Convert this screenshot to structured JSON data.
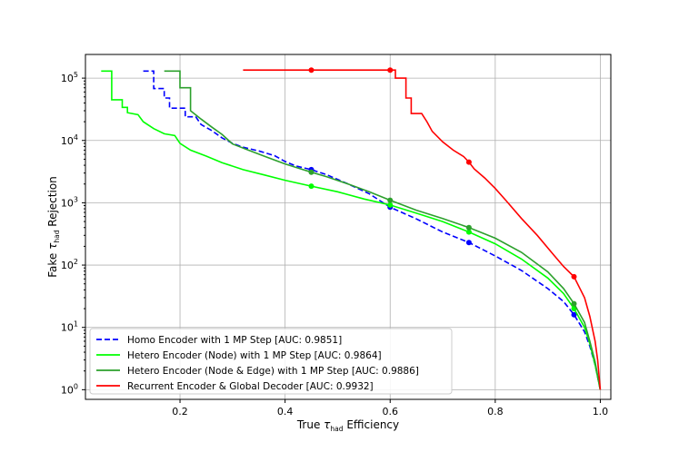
{
  "chart_data": {
    "type": "line",
    "xlabel": "True τ_had Efficiency",
    "ylabel": "Fake τ_had Rejection",
    "xlabel_parts": [
      "True ",
      "τ",
      "had",
      " Efficiency"
    ],
    "ylabel_parts": [
      "Fake ",
      "τ",
      "had",
      " Rejection"
    ],
    "x_range": [
      0.02,
      1.02
    ],
    "y_scale": "log",
    "y_range": [
      0.7,
      240000
    ],
    "xticks": [
      0.2,
      0.4,
      0.6,
      0.8,
      1.0
    ],
    "xtick_labels": [
      "0.2",
      "0.4",
      "0.6",
      "0.8",
      "1.0"
    ],
    "yticks": [
      1,
      10,
      100,
      1000,
      10000,
      100000
    ],
    "ytick_exponents": [
      "0",
      "1",
      "2",
      "3",
      "4",
      "5"
    ],
    "grid": true,
    "legend_position": "bottom-left",
    "series": [
      {
        "name": "Homo Encoder with 1 MP Step [AUC: 0.9851]",
        "color": "#0000ff",
        "dash": "dashed",
        "points": [
          [
            0.13,
            130000
          ],
          [
            0.15,
            130000
          ],
          [
            0.15,
            68000
          ],
          [
            0.17,
            68000
          ],
          [
            0.17,
            48000
          ],
          [
            0.18,
            48000
          ],
          [
            0.18,
            33000
          ],
          [
            0.21,
            33000
          ],
          [
            0.21,
            24000
          ],
          [
            0.23,
            24000
          ],
          [
            0.24,
            18000
          ],
          [
            0.26,
            14500
          ],
          [
            0.28,
            11000
          ],
          [
            0.3,
            9000
          ],
          [
            0.32,
            7800
          ],
          [
            0.35,
            6800
          ],
          [
            0.38,
            5700
          ],
          [
            0.4,
            4600
          ],
          [
            0.42,
            3900
          ],
          [
            0.45,
            3400
          ],
          [
            0.48,
            2800
          ],
          [
            0.52,
            2000
          ],
          [
            0.56,
            1400
          ],
          [
            0.6,
            850
          ],
          [
            0.65,
            550
          ],
          [
            0.7,
            340
          ],
          [
            0.75,
            230
          ],
          [
            0.8,
            140
          ],
          [
            0.85,
            82
          ],
          [
            0.9,
            42
          ],
          [
            0.93,
            26
          ],
          [
            0.95,
            16
          ],
          [
            0.97,
            8.5
          ],
          [
            0.98,
            5
          ],
          [
            0.99,
            2.5
          ],
          [
            1.0,
            1.0
          ]
        ],
        "markers": [
          [
            0.45,
            3400
          ],
          [
            0.6,
            850
          ],
          [
            0.75,
            230
          ],
          [
            0.95,
            16
          ]
        ]
      },
      {
        "name": "Hetero Encoder (Node) with 1 MP Step [AUC: 0.9864]",
        "color": "#00ff00",
        "dash": "solid",
        "points": [
          [
            0.05,
            130000
          ],
          [
            0.07,
            130000
          ],
          [
            0.07,
            45000
          ],
          [
            0.09,
            45000
          ],
          [
            0.09,
            34000
          ],
          [
            0.1,
            34000
          ],
          [
            0.1,
            28000
          ],
          [
            0.12,
            26000
          ],
          [
            0.13,
            20000
          ],
          [
            0.15,
            15500
          ],
          [
            0.17,
            12800
          ],
          [
            0.19,
            12000
          ],
          [
            0.2,
            9000
          ],
          [
            0.22,
            7000
          ],
          [
            0.25,
            5600
          ],
          [
            0.28,
            4400
          ],
          [
            0.32,
            3400
          ],
          [
            0.36,
            2800
          ],
          [
            0.4,
            2300
          ],
          [
            0.45,
            1850
          ],
          [
            0.5,
            1500
          ],
          [
            0.55,
            1150
          ],
          [
            0.6,
            920
          ],
          [
            0.65,
            680
          ],
          [
            0.7,
            500
          ],
          [
            0.75,
            340
          ],
          [
            0.8,
            220
          ],
          [
            0.85,
            125
          ],
          [
            0.9,
            62
          ],
          [
            0.93,
            35
          ],
          [
            0.95,
            20
          ],
          [
            0.97,
            10
          ],
          [
            0.98,
            5.5
          ],
          [
            0.99,
            2.5
          ],
          [
            1.0,
            1.0
          ]
        ],
        "markers": [
          [
            0.45,
            1850
          ],
          [
            0.6,
            920
          ],
          [
            0.75,
            340
          ],
          [
            0.95,
            20
          ]
        ]
      },
      {
        "name": "Hetero Encoder (Node & Edge) with 1 MP Step [AUC: 0.9886]",
        "color": "#2ca02c",
        "dash": "solid",
        "points": [
          [
            0.17,
            130000
          ],
          [
            0.2,
            130000
          ],
          [
            0.2,
            70000
          ],
          [
            0.22,
            70000
          ],
          [
            0.22,
            30000
          ],
          [
            0.24,
            22000
          ],
          [
            0.26,
            16500
          ],
          [
            0.28,
            12500
          ],
          [
            0.3,
            8800
          ],
          [
            0.33,
            7000
          ],
          [
            0.36,
            5600
          ],
          [
            0.4,
            4200
          ],
          [
            0.43,
            3500
          ],
          [
            0.45,
            3100
          ],
          [
            0.48,
            2600
          ],
          [
            0.52,
            2000
          ],
          [
            0.56,
            1500
          ],
          [
            0.6,
            1100
          ],
          [
            0.65,
            760
          ],
          [
            0.7,
            560
          ],
          [
            0.75,
            400
          ],
          [
            0.8,
            270
          ],
          [
            0.85,
            160
          ],
          [
            0.9,
            78
          ],
          [
            0.93,
            42
          ],
          [
            0.95,
            24
          ],
          [
            0.97,
            12
          ],
          [
            0.98,
            6
          ],
          [
            0.99,
            2.8
          ],
          [
            1.0,
            1.0
          ]
        ],
        "markers": [
          [
            0.45,
            3100
          ],
          [
            0.6,
            1100
          ],
          [
            0.75,
            400
          ],
          [
            0.95,
            24
          ]
        ]
      },
      {
        "name": "Recurrent Encoder & Global Decoder [AUC: 0.9932]",
        "color": "#ff0000",
        "dash": "solid",
        "points": [
          [
            0.32,
            135000
          ],
          [
            0.6,
            135000
          ],
          [
            0.61,
            135000
          ],
          [
            0.61,
            100000
          ],
          [
            0.63,
            100000
          ],
          [
            0.63,
            48000
          ],
          [
            0.64,
            48000
          ],
          [
            0.64,
            27000
          ],
          [
            0.66,
            27000
          ],
          [
            0.67,
            20000
          ],
          [
            0.68,
            14000
          ],
          [
            0.7,
            9500
          ],
          [
            0.72,
            7000
          ],
          [
            0.74,
            5500
          ],
          [
            0.75,
            4500
          ],
          [
            0.76,
            3500
          ],
          [
            0.78,
            2500
          ],
          [
            0.8,
            1700
          ],
          [
            0.82,
            1100
          ],
          [
            0.85,
            560
          ],
          [
            0.88,
            300
          ],
          [
            0.91,
            150
          ],
          [
            0.93,
            95
          ],
          [
            0.95,
            65
          ],
          [
            0.97,
            30
          ],
          [
            0.98,
            15
          ],
          [
            0.99,
            6
          ],
          [
            0.995,
            3
          ],
          [
            1.0,
            1.0
          ]
        ],
        "markers": [
          [
            0.45,
            135000
          ],
          [
            0.6,
            135000
          ],
          [
            0.75,
            4500
          ],
          [
            0.95,
            65
          ]
        ]
      }
    ]
  }
}
